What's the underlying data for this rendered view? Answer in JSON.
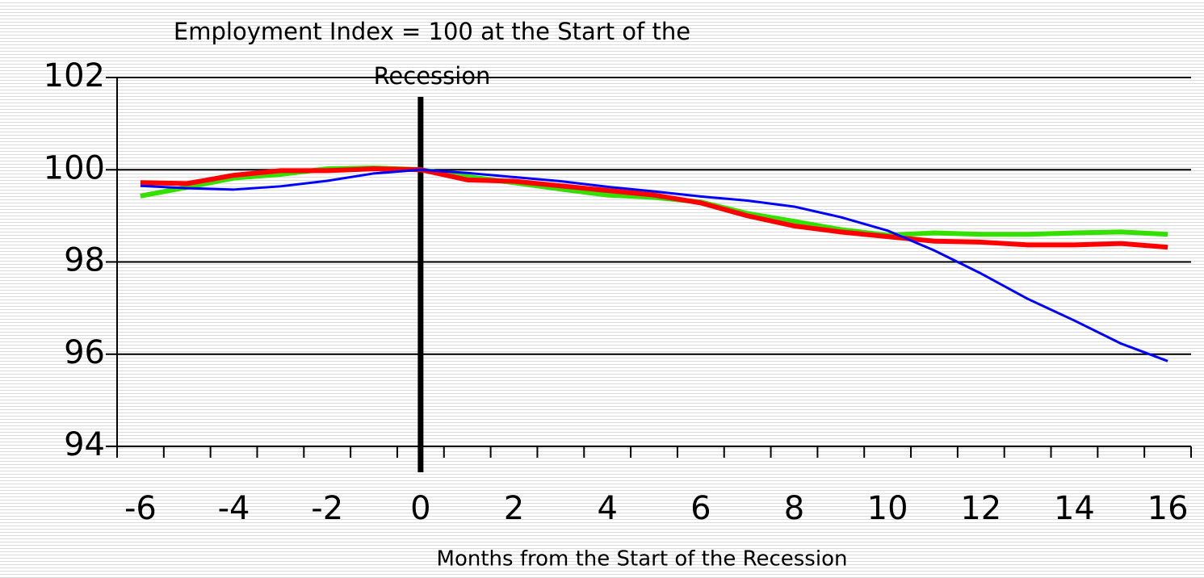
{
  "chart_data": {
    "type": "line",
    "title": "Employment Index = 100 at the Start of the Recession",
    "x_label": "Months from the Start of the Recession",
    "categories": [
      "-6",
      null,
      "-4",
      null,
      "-2",
      null,
      "0",
      null,
      "2",
      null,
      "4",
      null,
      "6",
      null,
      "8",
      null,
      "10",
      null,
      "12",
      null,
      "14",
      null,
      "16"
    ],
    "series": [
      {
        "color": "#33e000",
        "values": [
          99.43,
          99.62,
          99.82,
          99.9,
          100.02,
          100.04,
          100,
          99.85,
          99.72,
          99.58,
          99.45,
          99.4,
          99.3,
          99.05,
          98.88,
          98.7,
          98.58,
          98.63,
          98.6,
          98.6,
          98.63,
          98.65,
          98.6
        ]
      },
      {
        "color": "#ff0000",
        "values": [
          99.72,
          99.7,
          99.88,
          99.98,
          99.98,
          100.02,
          100,
          99.78,
          99.75,
          99.65,
          99.55,
          99.45,
          99.28,
          99.0,
          98.78,
          98.65,
          98.55,
          98.45,
          98.43,
          98.37,
          98.37,
          98.4,
          98.32
        ]
      },
      {
        "color": "#0000ff",
        "values": [
          99.65,
          99.6,
          99.57,
          99.64,
          99.76,
          99.92,
          100,
          99.93,
          99.84,
          99.75,
          99.63,
          99.53,
          99.42,
          99.33,
          99.2,
          98.97,
          98.68,
          98.25,
          97.75,
          97.2,
          96.73,
          96.23,
          95.85
        ]
      }
    ],
    "ylim": [
      94,
      102
    ],
    "yticks": [
      94,
      96,
      98,
      100,
      102
    ],
    "grid": true
  }
}
